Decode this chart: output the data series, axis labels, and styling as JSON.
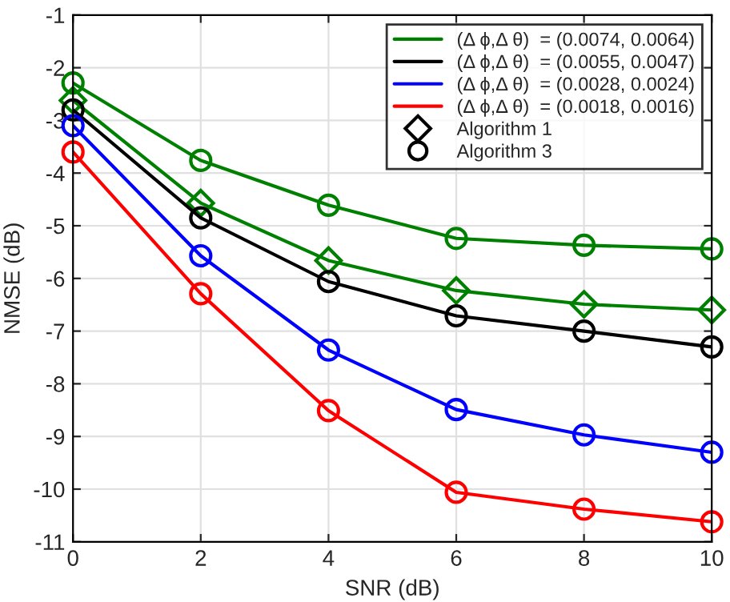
{
  "chart_data": {
    "type": "line",
    "xlabel": "SNR (dB)",
    "ylabel": "NMSE (dB)",
    "x": [
      0,
      2,
      4,
      6,
      8,
      10
    ],
    "series": [
      {
        "color": "#008000",
        "marker": "diamond",
        "values": [
          -2.62,
          -4.57,
          -5.66,
          -6.23,
          -6.49,
          -6.6
        ]
      },
      {
        "name": "(Δ ϕ,Δ θ)  = (0.0074, 0.0064)",
        "color": "#008000",
        "marker": "circle",
        "values": [
          -2.29,
          -3.76,
          -4.61,
          -5.24,
          -5.37,
          -5.44
        ]
      },
      {
        "name": "(Δ ϕ,Δ θ)  = (0.0055, 0.0047)",
        "color": "#000000",
        "marker": "circle",
        "values": [
          -2.8,
          -4.85,
          -6.06,
          -6.71,
          -7.0,
          -7.3
        ]
      },
      {
        "name": "(Δ ϕ,Δ θ)  = (0.0028, 0.0024)",
        "color": "#0000ff",
        "marker": "circle",
        "values": [
          -3.1,
          -5.57,
          -7.36,
          -8.49,
          -8.97,
          -9.3
        ]
      },
      {
        "name": "(Δ ϕ,Δ θ)  = (0.0018, 0.0016)",
        "color": "#ff0000",
        "marker": "circle",
        "values": [
          -3.6,
          -6.29,
          -8.51,
          -10.06,
          -10.38,
          -10.62
        ]
      }
    ],
    "annotations": [
      "Algorithm 1",
      "Algorithm 3"
    ],
    "xlim": [
      0,
      10
    ],
    "xticks": [
      0,
      2,
      4,
      6,
      8,
      10
    ],
    "ylim": [
      -11,
      -1
    ],
    "yticks": [
      -11,
      -10,
      -9,
      -8,
      -7,
      -6,
      -5,
      -4,
      -3,
      -2,
      -1
    ],
    "grid": true,
    "legend": "top right",
    "line_style": "solid"
  }
}
